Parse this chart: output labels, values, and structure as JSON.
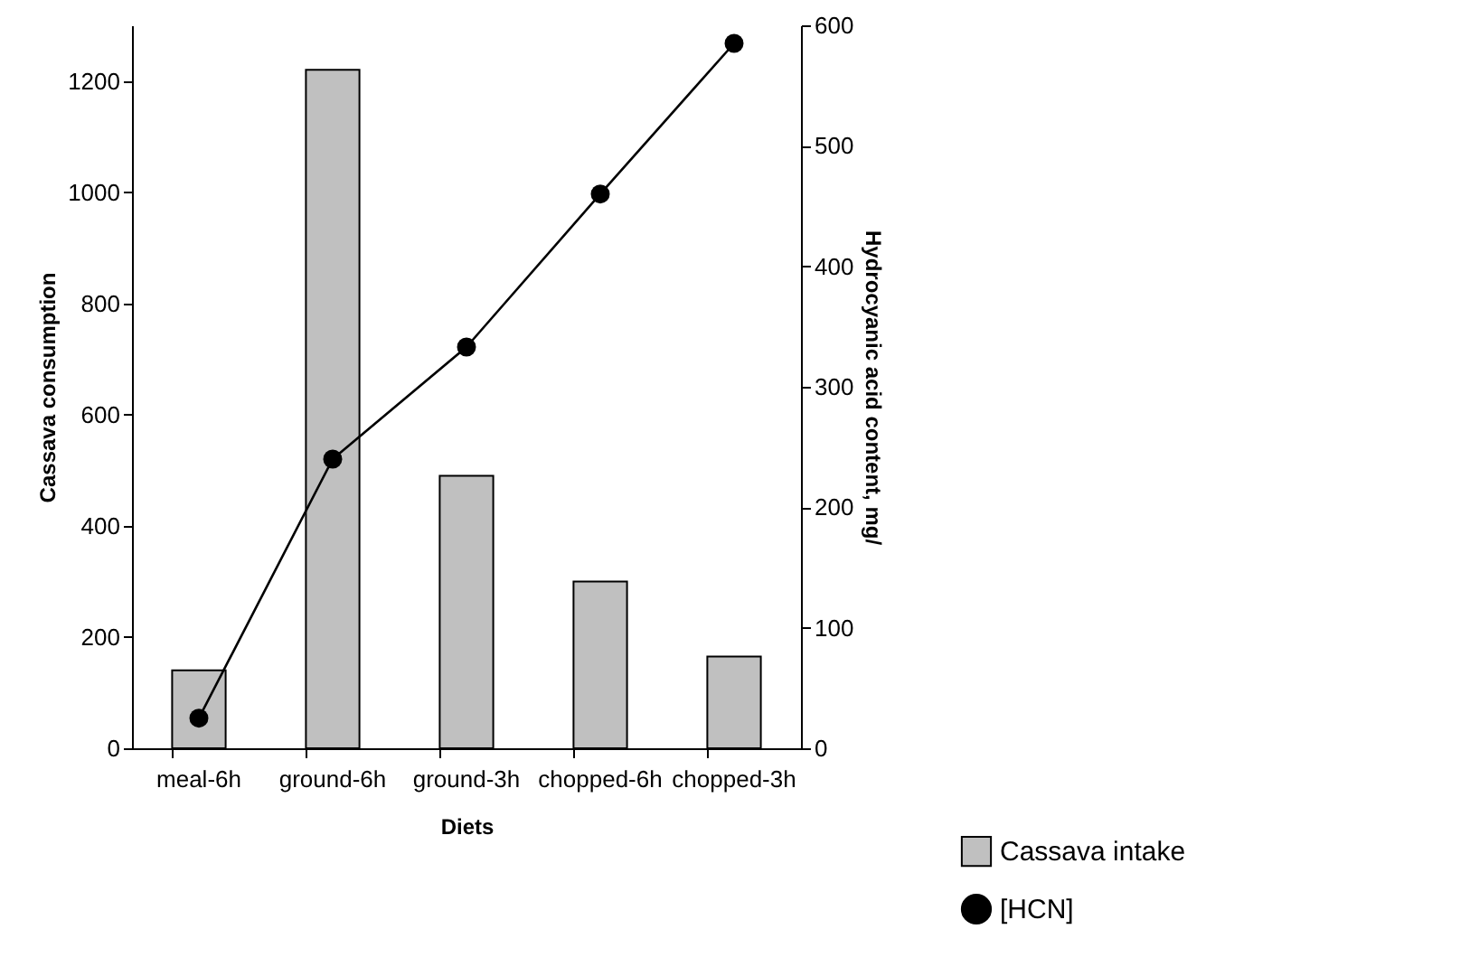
{
  "chart_data": {
    "type": "bar",
    "xlabel": "Diets",
    "ylabel": "Cassava consumption",
    "y2label": "Hydrocyanic acid content, mg/",
    "categories": [
      "meal-6h",
      "ground-6h",
      "ground-3h",
      "chopped-6h",
      "chopped-3h"
    ],
    "series": [
      {
        "name": "Cassava intake",
        "color": "#c0c0c0",
        "values": [
          140,
          1220,
          490,
          300,
          165
        ]
      },
      {
        "name": "[HCN]",
        "type": "line",
        "axis": "y2",
        "color": "#000000",
        "values": [
          25,
          240,
          333,
          460,
          585
        ]
      }
    ],
    "ylim": [
      0,
      1300
    ],
    "yticks": [
      0,
      200,
      400,
      600,
      800,
      1000,
      1200
    ],
    "y2lim": [
      0,
      600
    ],
    "y2ticks": [
      0,
      100,
      200,
      300,
      400,
      500,
      600
    ],
    "marker": "circle",
    "line_style": "solid",
    "grid": false,
    "legend": "bottom right"
  }
}
